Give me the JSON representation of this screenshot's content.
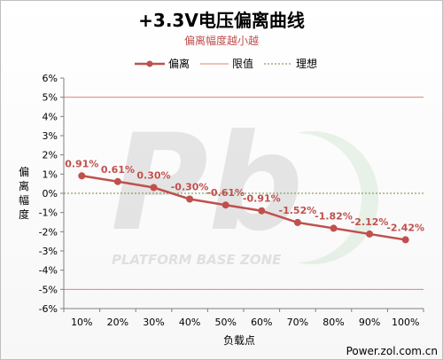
{
  "chart_data": {
    "type": "line",
    "title": "+3.3V电压偏离曲线",
    "subtitle": "偏离幅度越小越",
    "xlabel": "负载点",
    "ylabel": "偏离幅度",
    "categories": [
      "10%",
      "20%",
      "30%",
      "40%",
      "50%",
      "60%",
      "70%",
      "80%",
      "90%",
      "100%"
    ],
    "y_ticks": [
      "6%",
      "5%",
      "4%",
      "3%",
      "2%",
      "1%",
      "0%",
      "-1%",
      "-2%",
      "-3%",
      "-4%",
      "-5%",
      "-6%"
    ],
    "ylim": [
      -6,
      6
    ],
    "series": [
      {
        "name": "偏离",
        "values": [
          0.91,
          0.61,
          0.3,
          -0.3,
          -0.61,
          -0.91,
          -1.52,
          -1.82,
          -2.12,
          -2.42
        ],
        "labels": [
          "0.91%",
          "0.61%",
          "0.30%",
          "-0.30%",
          "-0.61%",
          "-0.91%",
          "-1.52%",
          "-1.82%",
          "-2.12%",
          "-2.42%"
        ],
        "color": "#c0504d"
      }
    ],
    "reference_lines": [
      {
        "name": "限值",
        "values": [
          5,
          -5
        ],
        "color": "#e8806f"
      },
      {
        "name": "理想",
        "values": [
          0
        ],
        "color": "#6b8e3e"
      }
    ],
    "legend_position": "top",
    "grid": false
  },
  "watermark": {
    "big": "Pb",
    "text": "PLATFORM BASE ZONE"
  },
  "credit": "Power.zol.com.cn"
}
